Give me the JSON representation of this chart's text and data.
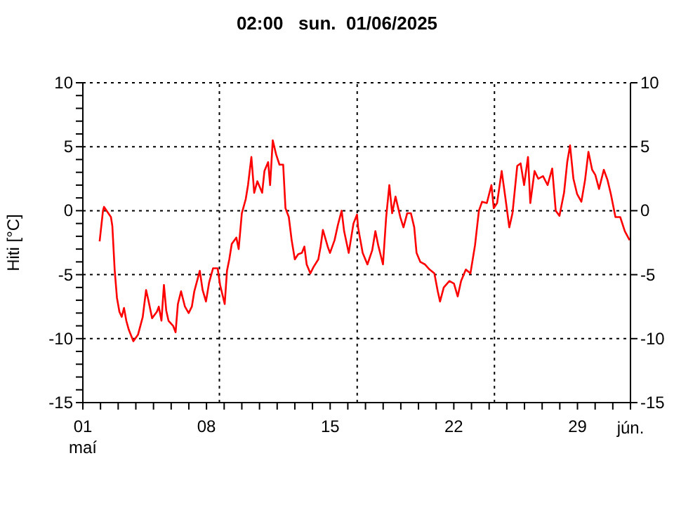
{
  "chart_data": {
    "type": "line",
    "title": "02:00   sun.  01/06/2025",
    "ylabel": "Hiti [°C]",
    "x": [
      "2025-05-01T22:48",
      "2025-05-02T03:22",
      "2025-05-02T04:48",
      "2025-05-02T14:10",
      "2025-05-02T16:05",
      "2025-05-02T19:12",
      "2025-05-02T22:19",
      "2025-05-03T01:41",
      "2025-05-03T04:48",
      "2025-05-03T07:55",
      "2025-05-03T11:02",
      "2025-05-03T14:24",
      "2025-05-03T20:38",
      "2025-05-04T02:53",
      "2025-05-04T09:22",
      "2025-05-04T13:55",
      "2025-05-04T17:02",
      "2025-05-04T22:05",
      "2025-05-05T04:34",
      "2025-05-05T07:12",
      "2025-05-05T10:48",
      "2025-05-05T14:10",
      "2025-05-05T17:17",
      "2025-05-05T20:24",
      "2025-05-06T02:38",
      "2025-05-06T06:00",
      "2025-05-06T09:07",
      "2025-05-06T13:26",
      "2025-05-06T18:43",
      "2025-05-06T23:46",
      "2025-05-07T04:05",
      "2025-05-07T07:26",
      "2025-05-07T14:53",
      "2025-05-07T18:43",
      "2025-05-07T23:17",
      "2025-05-08T03:36",
      "2025-05-08T08:53",
      "2025-05-08T15:07",
      "2025-05-08T18:29",
      "2025-05-09T00:43",
      "2025-05-09T03:50",
      "2025-05-09T06:58",
      "2025-05-09T10:19",
      "2025-05-09T16:34",
      "2025-05-09T19:41",
      "2025-05-10T00:00",
      "2025-05-10T05:17",
      "2025-05-10T08:24",
      "2025-05-10T12:58",
      "2025-05-10T16:48",
      "2025-05-10T21:07",
      "2025-05-11T03:36",
      "2025-05-11T06:43",
      "2025-05-11T11:46",
      "2025-05-11T14:24",
      "2025-05-11T18:00",
      "2025-05-11T22:34",
      "2025-05-12T03:07",
      "2025-05-12T08:10",
      "2025-05-12T11:17",
      "2025-05-12T15:50",
      "2025-05-12T19:41",
      "2025-05-13T00:00",
      "2025-05-13T04:34",
      "2025-05-13T09:36",
      "2025-05-13T12:58",
      "2025-05-13T16:05",
      "2025-05-13T21:07",
      "2025-05-14T01:26",
      "2025-05-14T07:55",
      "2025-05-14T11:02",
      "2025-05-14T14:10",
      "2025-05-14T20:38",
      "2025-05-14T23:46",
      "2025-05-15T06:00",
      "2025-05-15T10:34",
      "2025-05-15T15:36",
      "2025-05-15T18:58",
      "2025-05-16T01:12",
      "2025-05-16T07:41",
      "2025-05-16T12:29",
      "2025-05-16T13:55",
      "2025-05-16T20:10",
      "2025-05-17T02:38",
      "2025-05-17T09:07",
      "2025-05-17T13:26",
      "2025-05-17T17:17",
      "2025-05-17T23:46",
      "2025-05-18T04:05",
      "2025-05-18T08:24",
      "2025-05-18T12:14",
      "2025-05-18T16:48",
      "2025-05-18T23:17",
      "2025-05-19T03:36",
      "2025-05-19T08:38",
      "2025-05-19T13:41",
      "2025-05-19T18:14",
      "2025-05-19T21:22",
      "2025-05-20T02:24",
      "2025-05-20T08:53",
      "2025-05-20T15:07",
      "2025-05-20T21:36",
      "2025-05-21T02:10",
      "2025-05-21T05:17",
      "2025-05-21T10:19",
      "2025-05-21T18:00",
      "2025-05-22T00:14",
      "2025-05-22T05:17",
      "2025-05-22T09:50",
      "2025-05-22T16:19",
      "2025-05-22T22:34",
      "2025-05-23T04:48",
      "2025-05-23T10:05",
      "2025-05-23T14:24",
      "2025-05-23T20:53",
      "2025-05-24T03:07",
      "2025-05-24T06:14",
      "2025-05-24T10:48",
      "2025-05-24T17:02",
      "2025-05-24T22:19",
      "2025-05-25T03:22",
      "2025-05-25T07:41",
      "2025-05-25T14:10",
      "2025-05-25T18:43",
      "2025-05-25T23:31",
      "2025-05-26T04:48",
      "2025-05-26T07:55",
      "2025-05-26T13:41",
      "2025-05-26T18:43",
      "2025-05-27T01:12",
      "2025-05-27T07:26",
      "2025-05-27T13:41",
      "2025-05-27T18:29",
      "2025-05-27T23:31",
      "2025-05-28T05:46",
      "2025-05-28T10:05",
      "2025-05-28T13:55",
      "2025-05-28T18:29",
      "2025-05-28T23:31",
      "2025-05-29T05:17",
      "2025-05-29T10:19",
      "2025-05-29T14:53",
      "2025-05-29T19:55",
      "2025-05-30T00:14",
      "2025-05-30T05:17",
      "2025-05-30T11:46",
      "2025-05-30T16:48",
      "2025-05-30T21:22",
      "2025-05-31T03:36",
      "2025-05-31T10:05",
      "2025-05-31T16:19",
      "2025-05-31T22:48"
    ],
    "series": [
      {
        "color": "#ff0000",
        "values": [
          -2.4,
          0,
          0.3,
          -0.5,
          -1.2,
          -4.6,
          -6.8,
          -7.9,
          -8.3,
          -7.6,
          -8.6,
          -9.3,
          -10.2,
          -9.7,
          -8.3,
          -6.2,
          -7.0,
          -8.4,
          -7.9,
          -7.5,
          -8.6,
          -5.8,
          -7.8,
          -8.6,
          -9.0,
          -9.5,
          -7.3,
          -6.3,
          -7.5,
          -8.0,
          -7.5,
          -6.3,
          -4.7,
          -6.2,
          -7.1,
          -5.6,
          -4.5,
          -4.5,
          -5.8,
          -7.3,
          -4.7,
          -3.8,
          -2.6,
          -2.1,
          -3.0,
          -0.2,
          0.9,
          2.0,
          4.2,
          1.4,
          2.3,
          1.4,
          3.1,
          3.8,
          2.0,
          5.5,
          4.4,
          3.6,
          3.6,
          0.2,
          -0.5,
          -2.3,
          -3.8,
          -3.4,
          -3.3,
          -2.8,
          -4.2,
          -4.9,
          -4.4,
          -3.8,
          -2.8,
          -1.5,
          -2.8,
          -3.3,
          -2.3,
          -1.1,
          0,
          -1.6,
          -3.3,
          -1.0,
          -0.3,
          -1.3,
          -3.3,
          -4.2,
          -3.1,
          -1.6,
          -2.7,
          -4.2,
          -0.5,
          2.0,
          -0.2,
          1.1,
          -0.5,
          -1.3,
          -0.2,
          -0.2,
          -1.3,
          -3.3,
          -4.0,
          -4.2,
          -4.6,
          -4.9,
          -6.3,
          -7.1,
          -6.0,
          -5.5,
          -5.7,
          -6.7,
          -5.5,
          -4.6,
          -4.9,
          -2.7,
          0,
          0.7,
          0.6,
          2.0,
          0.2,
          0.6,
          3.1,
          0.9,
          -1.3,
          -0.2,
          3.5,
          3.7,
          2.0,
          4.2,
          0.6,
          3.1,
          2.5,
          2.7,
          2.0,
          3.3,
          0,
          -0.4,
          1.4,
          3.8,
          5.1,
          2.5,
          1.3,
          0.7,
          2.4,
          4.6,
          3.2,
          2.8,
          1.7,
          3.2,
          2.4,
          1.3,
          -0.5,
          -0.5,
          -1.6,
          -2.3
        ]
      }
    ],
    "xlim": [
      "2025-05-01",
      "2025-06-01"
    ],
    "xticks": [
      {
        "value": "2025-05-01",
        "label": "01\nmaí"
      },
      {
        "value": "2025-05-02",
        "label": null
      },
      {
        "value": "2025-05-03",
        "label": null
      },
      {
        "value": "2025-05-04",
        "label": null
      },
      {
        "value": "2025-05-05",
        "label": null
      },
      {
        "value": "2025-05-06",
        "label": null
      },
      {
        "value": "2025-05-07",
        "label": null
      },
      {
        "value": "2025-05-08",
        "label": "08"
      },
      {
        "value": "2025-05-09",
        "label": null
      },
      {
        "value": "2025-05-10",
        "label": null
      },
      {
        "value": "2025-05-11",
        "label": null
      },
      {
        "value": "2025-05-12",
        "label": null
      },
      {
        "value": "2025-05-13",
        "label": null
      },
      {
        "value": "2025-05-14",
        "label": null
      },
      {
        "value": "2025-05-15",
        "label": "15"
      },
      {
        "value": "2025-05-16",
        "label": null
      },
      {
        "value": "2025-05-17",
        "label": null
      },
      {
        "value": "2025-05-18",
        "label": null
      },
      {
        "value": "2025-05-19",
        "label": null
      },
      {
        "value": "2025-05-20",
        "label": null
      },
      {
        "value": "2025-05-21",
        "label": null
      },
      {
        "value": "2025-05-22",
        "label": "22"
      },
      {
        "value": "2025-05-23",
        "label": null
      },
      {
        "value": "2025-05-24",
        "label": null
      },
      {
        "value": "2025-05-25",
        "label": null
      },
      {
        "value": "2025-05-26",
        "label": null
      },
      {
        "value": "2025-05-27",
        "label": null
      },
      {
        "value": "2025-05-28",
        "label": null
      },
      {
        "value": "2025-05-29",
        "label": "29"
      },
      {
        "value": "2025-05-30",
        "label": null
      },
      {
        "value": "2025-05-31",
        "label": null
      },
      {
        "value": "2025-06-01",
        "label": "\njún."
      }
    ],
    "ylim": [
      -15,
      10
    ],
    "yticks": [
      -15,
      {
        "value": -14,
        "label": null
      },
      {
        "value": -13,
        "label": null
      },
      {
        "value": -12,
        "label": null
      },
      {
        "value": -11,
        "label": null
      },
      -10,
      {
        "value": -9,
        "label": null
      },
      {
        "value": -8,
        "label": null
      },
      {
        "value": -7,
        "label": null
      },
      {
        "value": -6,
        "label": null
      },
      -5,
      {
        "value": -4,
        "label": null
      },
      {
        "value": -3,
        "label": null
      },
      {
        "value": -2,
        "label": null
      },
      {
        "value": -1,
        "label": null
      },
      0,
      {
        "value": 1,
        "label": null
      },
      {
        "value": 2,
        "label": null
      },
      {
        "value": 3,
        "label": null
      },
      {
        "value": 4,
        "label": null
      },
      5,
      {
        "value": 6,
        "label": null
      },
      {
        "value": 7,
        "label": null
      },
      {
        "value": 8,
        "label": null
      },
      {
        "value": 9,
        "label": null
      },
      10
    ],
    "y2lim": [
      -15,
      10
    ],
    "y2ticks": [
      -15,
      -10,
      -5,
      0,
      5,
      10
    ],
    "grid": "y",
    "ref_lines": [
      {
        "axis": "x",
        "value": "2025-05-08T17:31",
        "color": "#000000",
        "line_style": "dotted"
      },
      {
        "axis": "x",
        "value": "2025-05-16T12:43",
        "color": "#000000",
        "line_style": "dotted"
      },
      {
        "axis": "x",
        "value": "2025-05-24T07:12",
        "color": "#000000",
        "line_style": "dotted"
      }
    ],
    "marker": "none",
    "line_style": "solid"
  }
}
